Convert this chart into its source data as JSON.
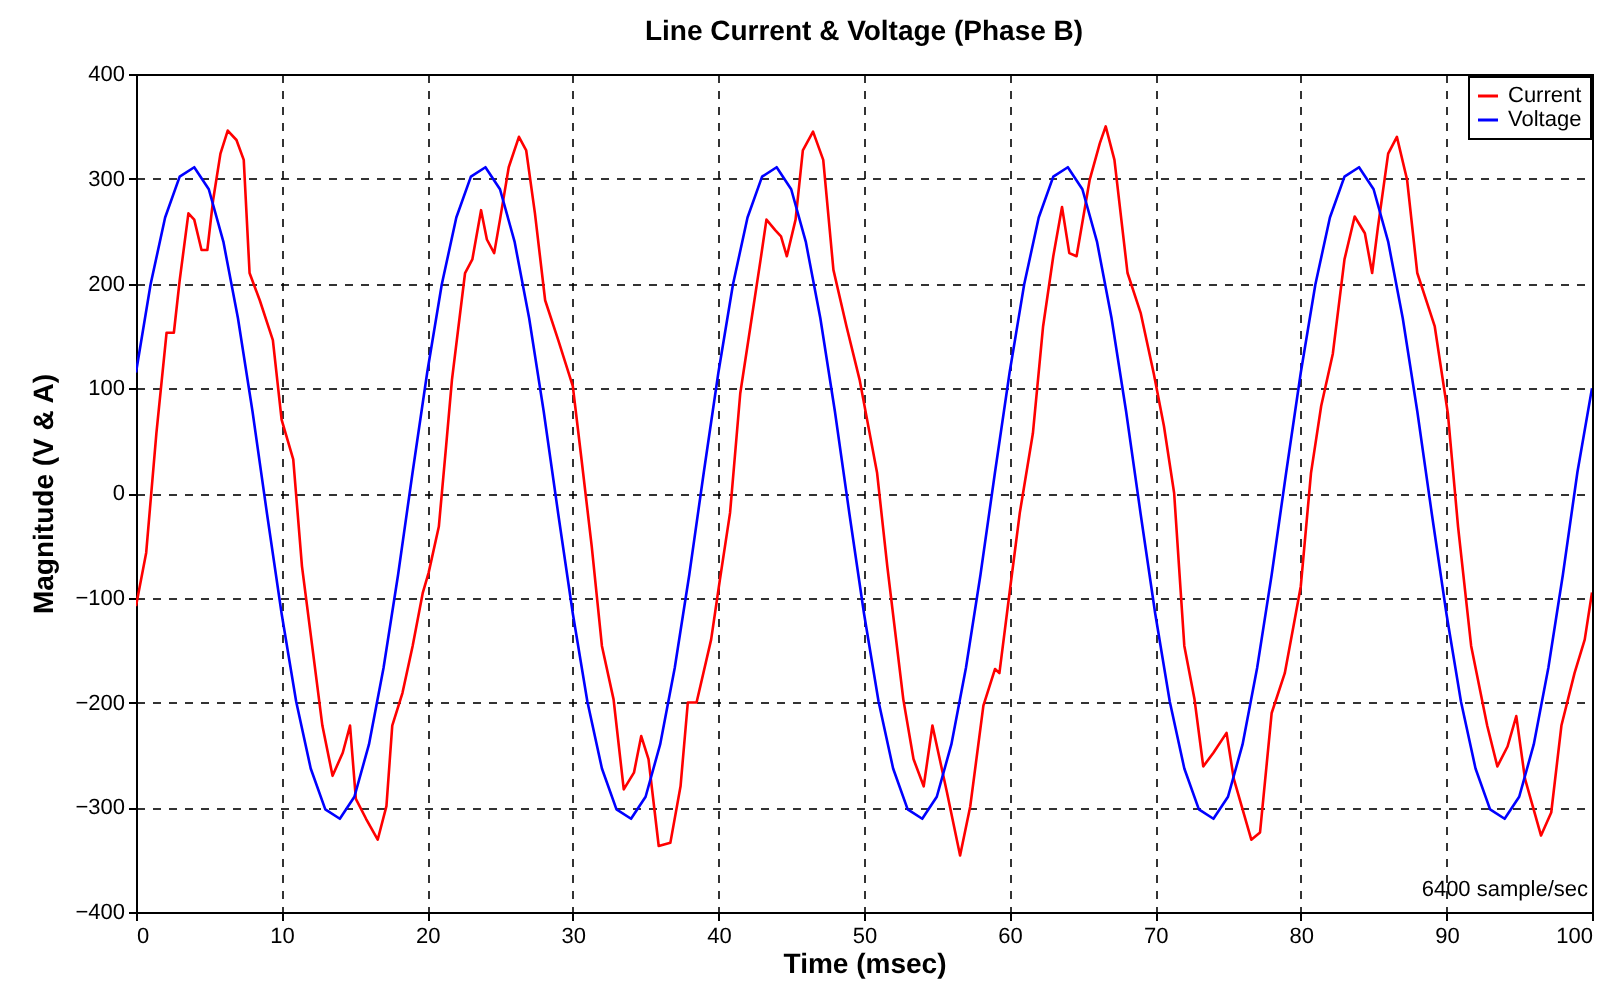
{
  "chart_data": {
    "type": "line",
    "title": "Line Current & Voltage (Phase B)",
    "xlabel": "Time (msec)",
    "ylabel": "Magnitude (V & A)",
    "xlim": [
      0,
      100
    ],
    "ylim": [
      -400,
      400
    ],
    "xticks": [
      0,
      10,
      20,
      30,
      40,
      50,
      60,
      70,
      80,
      90,
      100
    ],
    "yticks": [
      -400,
      -300,
      -200,
      -100,
      0,
      100,
      200,
      300,
      400
    ],
    "grid": true,
    "legend": "top right",
    "annotations": [
      "6400 sample/sec"
    ],
    "series": [
      {
        "name": "Current",
        "color": "#ff0000",
        "x": [
          0,
          0.7,
          1.4,
          2.1,
          2.6,
          3.0,
          3.6,
          4.0,
          4.5,
          4.9,
          5.3,
          5.8,
          6.3,
          6.9,
          7.4,
          7.8,
          8.5,
          9.4,
          10.0,
          10.8,
          11.4,
          12.1,
          12.8,
          13.5,
          14.2,
          14.7,
          15.1,
          15.8,
          16.6,
          17.2,
          17.6,
          18.3,
          19.0,
          19.7,
          20.1,
          20.8,
          21.3,
          21.7,
          22.6,
          23.1,
          23.7,
          24.1,
          24.6,
          25.0,
          25.6,
          26.3,
          26.8,
          27.4,
          28.1,
          29.0,
          30.0,
          30.6,
          31.3,
          32.0,
          32.8,
          33.5,
          34.2,
          34.7,
          35.2,
          35.9,
          36.7,
          37.4,
          37.9,
          38.5,
          39.5,
          40.1,
          40.8,
          41.5,
          42.2,
          42.9,
          43.3,
          43.9,
          44.3,
          44.7,
          45.3,
          45.8,
          46.5,
          47.2,
          47.9,
          48.8,
          49.7,
          50.9,
          51.6,
          52.7,
          53.4,
          54.1,
          54.7,
          55.7,
          56.6,
          57.3,
          58.2,
          59.0,
          59.3,
          60.0,
          60.7,
          61.6,
          62.3,
          63.0,
          63.6,
          64.1,
          64.6,
          65.5,
          66.2,
          66.6,
          67.2,
          68.1,
          69.0,
          69.9,
          70.6,
          71.3,
          72.0,
          72.7,
          73.3,
          74.0,
          74.9,
          75.4,
          76.6,
          77.2,
          78.0,
          78.9,
          79.5,
          80.0,
          80.7,
          81.4,
          82.2,
          83.0,
          83.7,
          84.4,
          84.9,
          85.3,
          86.0,
          86.6,
          87.3,
          88.0,
          89.2,
          90.1,
          90.8,
          91.7,
          92.8,
          93.5,
          94.2,
          94.8,
          95.4,
          96.5,
          97.2,
          97.9,
          98.8,
          99.5,
          100
        ],
        "values": [
          -108,
          -57,
          57,
          153,
          153,
          203,
          267,
          261,
          232,
          232,
          280,
          324,
          346,
          337,
          318,
          210,
          184,
          146,
          70,
          32,
          -70,
          -146,
          -222,
          -270,
          -248,
          -222,
          -292,
          -311,
          -331,
          -299,
          -222,
          -191,
          -146,
          -95,
          -76,
          -32,
          45,
          108,
          210,
          223,
          270,
          242,
          229,
          261,
          311,
          340,
          327,
          267,
          184,
          146,
          102,
          32,
          -51,
          -146,
          -197,
          -283,
          -267,
          -232,
          -254,
          -337,
          -334,
          -280,
          -200,
          -200,
          -140,
          -83,
          -19,
          95,
          159,
          223,
          261,
          251,
          245,
          226,
          261,
          327,
          345,
          318,
          213,
          159,
          108,
          19,
          -70,
          -197,
          -254,
          -280,
          -222,
          -286,
          -346,
          -299,
          -203,
          -168,
          -172,
          -95,
          -19,
          57,
          159,
          226,
          273,
          229,
          226,
          299,
          334,
          350,
          318,
          210,
          172,
          114,
          64,
          0,
          -146,
          -197,
          -261,
          -248,
          -229,
          -273,
          -331,
          -324,
          -210,
          -172,
          -127,
          -89,
          19,
          83,
          133,
          223,
          264,
          248,
          210,
          254,
          324,
          340,
          299,
          210,
          159,
          76,
          -32,
          -146,
          -222,
          -261,
          -242,
          -213,
          -273,
          -327,
          -305,
          -222,
          -172,
          -140,
          -95
        ]
      },
      {
        "name": "Voltage",
        "color": "#0000ff",
        "x": [
          0,
          1,
          2,
          3,
          4,
          5,
          6,
          7,
          8,
          9,
          10,
          11,
          12,
          13,
          14,
          15,
          16,
          17,
          18,
          19,
          20,
          21,
          22,
          23,
          24,
          25,
          26,
          27,
          28,
          29,
          30,
          31,
          32,
          33,
          34,
          35,
          36,
          37,
          38,
          39,
          40,
          41,
          42,
          43,
          44,
          45,
          46,
          47,
          48,
          49,
          50,
          51,
          52,
          53,
          54,
          55,
          56,
          57,
          58,
          59,
          60,
          61,
          62,
          63,
          64,
          65,
          66,
          67,
          68,
          69,
          70,
          71,
          72,
          73,
          74,
          75,
          76,
          77,
          78,
          79,
          80,
          81,
          82,
          83,
          84,
          85,
          86,
          87,
          88,
          89,
          90,
          91,
          92,
          93,
          94,
          95,
          96,
          97,
          98,
          99,
          100
        ],
        "values": [
          115,
          199,
          263,
          302,
          311,
          290,
          240,
          167,
          78,
          -20,
          -115,
          -199,
          -263,
          -302,
          -311,
          -290,
          -240,
          -167,
          -78,
          20,
          115,
          199,
          263,
          302,
          311,
          290,
          240,
          167,
          78,
          -20,
          -115,
          -199,
          -263,
          -302,
          -311,
          -290,
          -240,
          -167,
          -78,
          20,
          115,
          199,
          263,
          302,
          311,
          290,
          240,
          167,
          78,
          -20,
          -115,
          -199,
          -263,
          -302,
          -311,
          -290,
          -240,
          -167,
          -78,
          20,
          115,
          199,
          263,
          302,
          311,
          290,
          240,
          167,
          78,
          -20,
          -115,
          -199,
          -263,
          -302,
          -311,
          -290,
          -240,
          -167,
          -78,
          20,
          115,
          199,
          263,
          302,
          311,
          290,
          240,
          167,
          78,
          -20,
          -115,
          -199,
          -263,
          -302,
          -311,
          -290,
          -240,
          -167,
          -78,
          20,
          100
        ]
      }
    ]
  }
}
